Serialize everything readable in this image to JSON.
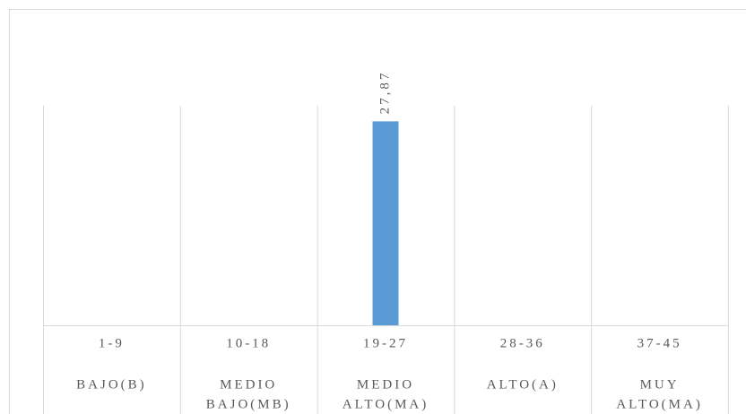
{
  "chart_data": {
    "type": "bar",
    "categories": [
      "1-9",
      "10-18",
      "19-27",
      "28-36",
      "37-45"
    ],
    "category_labels": [
      [
        "BAJO(B)"
      ],
      [
        "MEDIO",
        "BAJO(MB)"
      ],
      [
        "MEDIO",
        "ALTO(MA)"
      ],
      [
        "ALTO(A)"
      ],
      [
        "MUY",
        "ALTO(MA)"
      ]
    ],
    "values": [
      null,
      null,
      27.87,
      null,
      null
    ],
    "value_labels": [
      null,
      null,
      "27,87",
      null,
      null
    ],
    "color": "#5b9bd5",
    "ylim": [
      0,
      30
    ]
  }
}
